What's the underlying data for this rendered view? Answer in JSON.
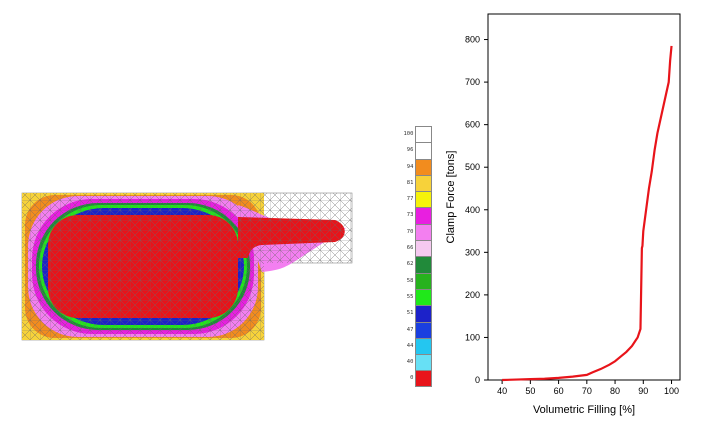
{
  "legend": {
    "title": "",
    "levels": [
      {
        "label": "100",
        "color": "#ffffff"
      },
      {
        "label": "96",
        "color": "#ffffff"
      },
      {
        "label": "94",
        "color": "#f28c1e"
      },
      {
        "label": "81",
        "color": "#f7d23a"
      },
      {
        "label": "77",
        "color": "#f6f20a"
      },
      {
        "label": "73",
        "color": "#e81fe0"
      },
      {
        "label": "70",
        "color": "#f37ff0"
      },
      {
        "label": "66",
        "color": "#f5c9f0"
      },
      {
        "label": "62",
        "color": "#218a3a"
      },
      {
        "label": "58",
        "color": "#27b21e"
      },
      {
        "label": "55",
        "color": "#20e81a"
      },
      {
        "label": "51",
        "color": "#1c22c9"
      },
      {
        "label": "47",
        "color": "#1a3fe0"
      },
      {
        "label": "44",
        "color": "#24c6f0"
      },
      {
        "label": "40",
        "color": "#67e0f5"
      },
      {
        "label": "0",
        "color": "#e8141a"
      }
    ]
  },
  "chart_data": {
    "type": "line",
    "title": "",
    "xlabel": "Volumetric Filling [%]",
    "ylabel": "Clamp Force [tons]",
    "xlim": [
      35,
      103
    ],
    "ylim": [
      0,
      860
    ],
    "xticks": [
      40,
      50,
      60,
      70,
      80,
      90,
      100
    ],
    "yticks": [
      0,
      100,
      200,
      300,
      400,
      500,
      600,
      700,
      800
    ],
    "series": [
      {
        "name": "",
        "color": "#e8141a",
        "x": [
          40,
          45,
          50,
          55,
          60,
          65,
          70,
          72,
          75,
          78,
          80,
          82,
          84,
          86,
          88,
          89,
          89.5,
          89.7,
          90,
          91,
          92,
          93,
          94,
          95,
          96,
          97,
          98,
          99,
          99.5,
          100
        ],
        "y": [
          0,
          1,
          2,
          3,
          5,
          8,
          12,
          18,
          26,
          36,
          44,
          55,
          66,
          80,
          100,
          120,
          310,
          315,
          350,
          400,
          450,
          490,
          540,
          580,
          610,
          640,
          670,
          700,
          750,
          785
        ]
      }
    ]
  }
}
